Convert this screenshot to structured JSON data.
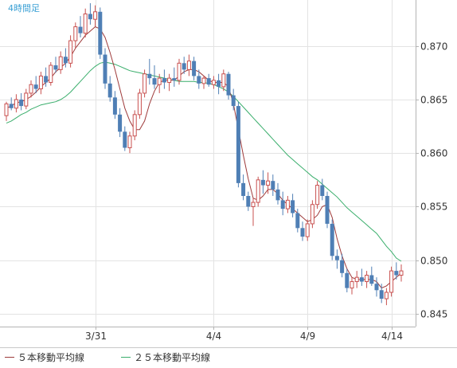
{
  "chart_data": {
    "type": "candlestick",
    "timeframe_label": "4時間足",
    "x_tick_labels": [
      "3/31",
      "4/4",
      "4/9",
      "4/14"
    ],
    "y_tick_labels": [
      "0.845",
      "0.850",
      "0.855",
      "0.860",
      "0.865",
      "0.870"
    ],
    "ylim": [
      0.8438,
      0.8743
    ],
    "grid": true,
    "colors": {
      "up": "#c8504f",
      "down": "#4f7fb5",
      "ma5": "#9e3a3a",
      "ma25": "#3aae6c",
      "grid": "#e3e3e3",
      "axis": "#b4b4b4",
      "label": "#333333",
      "timeframe": "#3aa0d5"
    },
    "legend": {
      "position": "bottom-left",
      "items": [
        {
          "label": "５本移動平均線",
          "color": "#9e3a3a"
        },
        {
          "label": "２５本移動平均線",
          "color": "#3aae6c"
        }
      ]
    },
    "candles": [
      [
        0.8635,
        0.8648,
        0.863,
        0.8646
      ],
      [
        0.8646,
        0.8652,
        0.864,
        0.8642
      ],
      [
        0.8642,
        0.8655,
        0.8638,
        0.865
      ],
      [
        0.865,
        0.8656,
        0.864,
        0.8644
      ],
      [
        0.8644,
        0.866,
        0.8641,
        0.8656
      ],
      [
        0.8656,
        0.8668,
        0.8652,
        0.8664
      ],
      [
        0.8664,
        0.8672,
        0.8656,
        0.866
      ],
      [
        0.866,
        0.8676,
        0.8655,
        0.8672
      ],
      [
        0.8672,
        0.868,
        0.8662,
        0.8666
      ],
      [
        0.8666,
        0.8685,
        0.8663,
        0.8682
      ],
      [
        0.8682,
        0.869,
        0.8675,
        0.8678
      ],
      [
        0.8678,
        0.8695,
        0.8674,
        0.869
      ],
      [
        0.869,
        0.8698,
        0.868,
        0.8684
      ],
      [
        0.8684,
        0.871,
        0.868,
        0.8705
      ],
      [
        0.8705,
        0.8722,
        0.8698,
        0.8718
      ],
      [
        0.8718,
        0.8728,
        0.8708,
        0.8712
      ],
      [
        0.8712,
        0.8735,
        0.8708,
        0.873
      ],
      [
        0.873,
        0.874,
        0.872,
        0.8725
      ],
      [
        0.8725,
        0.8738,
        0.8718,
        0.8732
      ],
      [
        0.8732,
        0.8736,
        0.8688,
        0.8692
      ],
      [
        0.8692,
        0.8698,
        0.866,
        0.8665
      ],
      [
        0.8665,
        0.8672,
        0.8648,
        0.8652
      ],
      [
        0.8652,
        0.8658,
        0.8632,
        0.8636
      ],
      [
        0.8636,
        0.8642,
        0.8615,
        0.862
      ],
      [
        0.862,
        0.8625,
        0.8602,
        0.8605
      ],
      [
        0.8605,
        0.862,
        0.86,
        0.8616
      ],
      [
        0.8616,
        0.864,
        0.8612,
        0.8636
      ],
      [
        0.8636,
        0.866,
        0.8632,
        0.8656
      ],
      [
        0.8656,
        0.8678,
        0.8652,
        0.8674
      ],
      [
        0.8674,
        0.8688,
        0.8664,
        0.867
      ],
      [
        0.867,
        0.8682,
        0.866,
        0.8664
      ],
      [
        0.8664,
        0.8674,
        0.8656,
        0.867
      ],
      [
        0.867,
        0.8678,
        0.866,
        0.8666
      ],
      [
        0.8666,
        0.8674,
        0.8658,
        0.867
      ],
      [
        0.867,
        0.868,
        0.8662,
        0.8668
      ],
      [
        0.8668,
        0.8688,
        0.8664,
        0.8684
      ],
      [
        0.8684,
        0.869,
        0.8674,
        0.8678
      ],
      [
        0.8678,
        0.8692,
        0.8672,
        0.8686
      ],
      [
        0.8686,
        0.869,
        0.8668,
        0.8672
      ],
      [
        0.8672,
        0.8678,
        0.866,
        0.8665
      ],
      [
        0.8665,
        0.8672,
        0.866,
        0.867
      ],
      [
        0.867,
        0.8674,
        0.8662,
        0.8664
      ],
      [
        0.8664,
        0.8672,
        0.866,
        0.8668
      ],
      [
        0.8668,
        0.8674,
        0.8655,
        0.8662
      ],
      [
        0.8662,
        0.8678,
        0.8658,
        0.8674
      ],
      [
        0.8674,
        0.8676,
        0.865,
        0.8654
      ],
      [
        0.8654,
        0.866,
        0.864,
        0.8644
      ],
      [
        0.8644,
        0.8648,
        0.8568,
        0.8572
      ],
      [
        0.8572,
        0.858,
        0.8556,
        0.856
      ],
      [
        0.856,
        0.8564,
        0.8546,
        0.855
      ],
      [
        0.855,
        0.8558,
        0.8532,
        0.8554
      ],
      [
        0.8554,
        0.8578,
        0.855,
        0.8575
      ],
      [
        0.8575,
        0.8584,
        0.8562,
        0.857
      ],
      [
        0.857,
        0.8582,
        0.8562,
        0.8574
      ],
      [
        0.8574,
        0.858,
        0.856,
        0.8566
      ],
      [
        0.8566,
        0.8572,
        0.8552,
        0.8556
      ],
      [
        0.8556,
        0.8564,
        0.8542,
        0.8548
      ],
      [
        0.8548,
        0.856,
        0.8544,
        0.8556
      ],
      [
        0.8556,
        0.8562,
        0.854,
        0.8544
      ],
      [
        0.8544,
        0.8548,
        0.8526,
        0.853
      ],
      [
        0.853,
        0.8536,
        0.8518,
        0.8522
      ],
      [
        0.8522,
        0.8538,
        0.8518,
        0.8534
      ],
      [
        0.8534,
        0.8556,
        0.853,
        0.8552
      ],
      [
        0.8552,
        0.8574,
        0.8548,
        0.857
      ],
      [
        0.857,
        0.8576,
        0.8556,
        0.856
      ],
      [
        0.856,
        0.8564,
        0.853,
        0.8534
      ],
      [
        0.8534,
        0.8538,
        0.85,
        0.8504
      ],
      [
        0.8504,
        0.851,
        0.8492,
        0.85
      ],
      [
        0.85,
        0.8506,
        0.8484,
        0.8488
      ],
      [
        0.8488,
        0.8492,
        0.847,
        0.8474
      ],
      [
        0.8474,
        0.8484,
        0.8468,
        0.848
      ],
      [
        0.848,
        0.849,
        0.8474,
        0.8484
      ],
      [
        0.8484,
        0.8492,
        0.8476,
        0.848
      ],
      [
        0.848,
        0.849,
        0.8474,
        0.8486
      ],
      [
        0.8486,
        0.8494,
        0.8476,
        0.8478
      ],
      [
        0.8478,
        0.8484,
        0.8466,
        0.8472
      ],
      [
        0.8472,
        0.8478,
        0.846,
        0.8464
      ],
      [
        0.8464,
        0.8474,
        0.8458,
        0.847
      ],
      [
        0.847,
        0.8494,
        0.8466,
        0.849
      ],
      [
        0.849,
        0.8498,
        0.8482,
        0.8486
      ],
      [
        0.8486,
        0.8496,
        0.848,
        0.849
      ]
    ],
    "ma5": [
      0.8642,
      0.8644,
      0.8647,
      0.8648,
      0.865,
      0.8653,
      0.8657,
      0.8662,
      0.8666,
      0.867,
      0.8676,
      0.868,
      0.8684,
      0.869,
      0.8698,
      0.8704,
      0.871,
      0.8714,
      0.8718,
      0.8716,
      0.8708,
      0.8694,
      0.8678,
      0.866,
      0.8642,
      0.863,
      0.8622,
      0.8622,
      0.863,
      0.8646,
      0.8658,
      0.8666,
      0.8668,
      0.8668,
      0.8668,
      0.8672,
      0.8676,
      0.8678,
      0.8678,
      0.8676,
      0.8672,
      0.8668,
      0.8666,
      0.8666,
      0.8666,
      0.8662,
      0.8646,
      0.8622,
      0.8598,
      0.8576,
      0.8558,
      0.8556,
      0.856,
      0.8566,
      0.8566,
      0.8562,
      0.8556,
      0.8552,
      0.8548,
      0.8544,
      0.854,
      0.8536,
      0.8538,
      0.8542,
      0.855,
      0.8552,
      0.854,
      0.852,
      0.8504,
      0.8492,
      0.8484,
      0.8482,
      0.8482,
      0.8482,
      0.8482,
      0.848,
      0.8474,
      0.8476,
      0.848,
      0.8484,
      0.8488
    ],
    "ma25": [
      0.8628,
      0.863,
      0.8633,
      0.8636,
      0.8638,
      0.8641,
      0.8643,
      0.8645,
      0.8646,
      0.8647,
      0.8648,
      0.865,
      0.8653,
      0.8657,
      0.8662,
      0.8667,
      0.8672,
      0.8677,
      0.8681,
      0.8684,
      0.8685,
      0.8684,
      0.8683,
      0.8681,
      0.8679,
      0.8677,
      0.8676,
      0.8675,
      0.8674,
      0.8673,
      0.8672,
      0.8671,
      0.867,
      0.8669,
      0.8668,
      0.8667,
      0.8667,
      0.8667,
      0.8667,
      0.8666,
      0.8666,
      0.8665,
      0.8664,
      0.8662,
      0.866,
      0.8657,
      0.8653,
      0.8648,
      0.8643,
      0.8638,
      0.8633,
      0.8628,
      0.8623,
      0.8618,
      0.8613,
      0.8608,
      0.8603,
      0.8598,
      0.8594,
      0.859,
      0.8586,
      0.8582,
      0.8578,
      0.8575,
      0.8571,
      0.8567,
      0.8563,
      0.8559,
      0.8554,
      0.8549,
      0.8545,
      0.8541,
      0.8537,
      0.8533,
      0.8529,
      0.8525,
      0.8519,
      0.8513,
      0.8508,
      0.8502,
      0.8499
    ],
    "x_tick_candle_index": [
      18,
      42,
      61,
      78
    ]
  }
}
